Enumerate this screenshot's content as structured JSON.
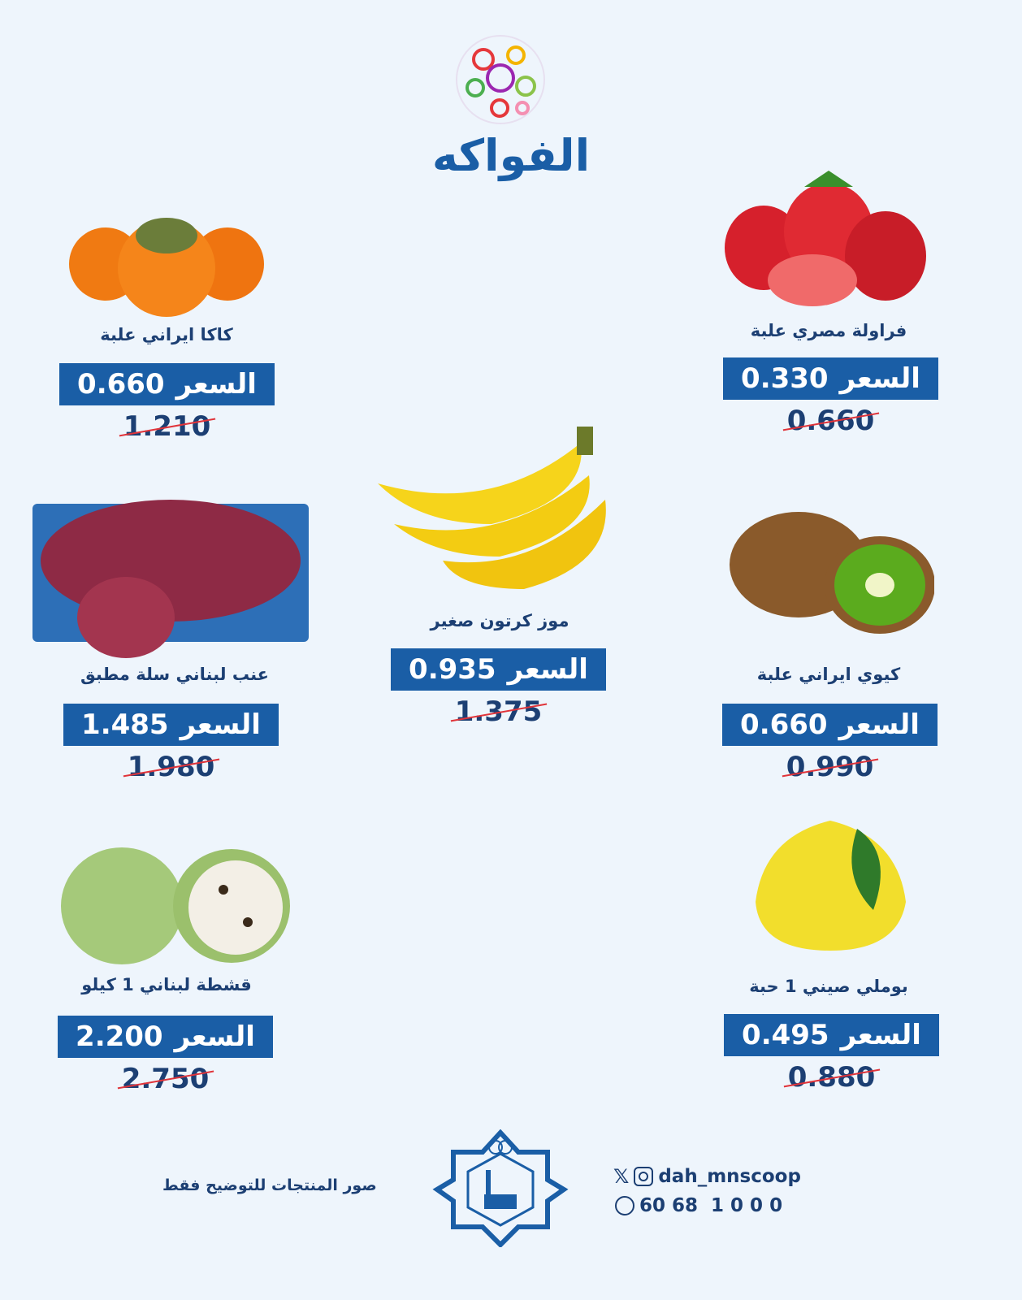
{
  "header": {
    "title": "الفواكه",
    "logo_icon": "fruit-circle-logo"
  },
  "colors": {
    "accent": "#1a5ea6",
    "background": "#eef5fc",
    "text": "#1c3f73",
    "strike": "#e0343a"
  },
  "price_label": "السعر",
  "products": [
    {
      "name": "فراولة مصري علبة",
      "price": "0.330",
      "old_price": "0.660",
      "icon": "strawberry"
    },
    {
      "name": "كاكا ايراني علبة",
      "price": "0.660",
      "old_price": "1.210",
      "icon": "persimmon"
    },
    {
      "name": "موز كرتون صغير",
      "price": "0.935",
      "old_price": "1.375",
      "icon": "banana"
    },
    {
      "name": "عنب لبناني سلة مطبق",
      "price": "1.485",
      "old_price": "1.980",
      "icon": "grapes"
    },
    {
      "name": "كيوي ايراني علبة",
      "price": "0.660",
      "old_price": "0.990",
      "icon": "kiwi"
    },
    {
      "name": "قشطة لبناني 1 كيلو",
      "price": "2.200",
      "old_price": "2.750",
      "icon": "custard-apple"
    },
    {
      "name": "بوملي صيني 1 حبة",
      "price": "0.495",
      "old_price": "0.880",
      "icon": "pomelo"
    }
  ],
  "footer": {
    "disclaimer": "صور المنتجات للتوضيح فقط",
    "social_handle": "dah_mnscoop",
    "phone": "60 68  1 0 0 0",
    "logo": "coop-star-logo"
  }
}
